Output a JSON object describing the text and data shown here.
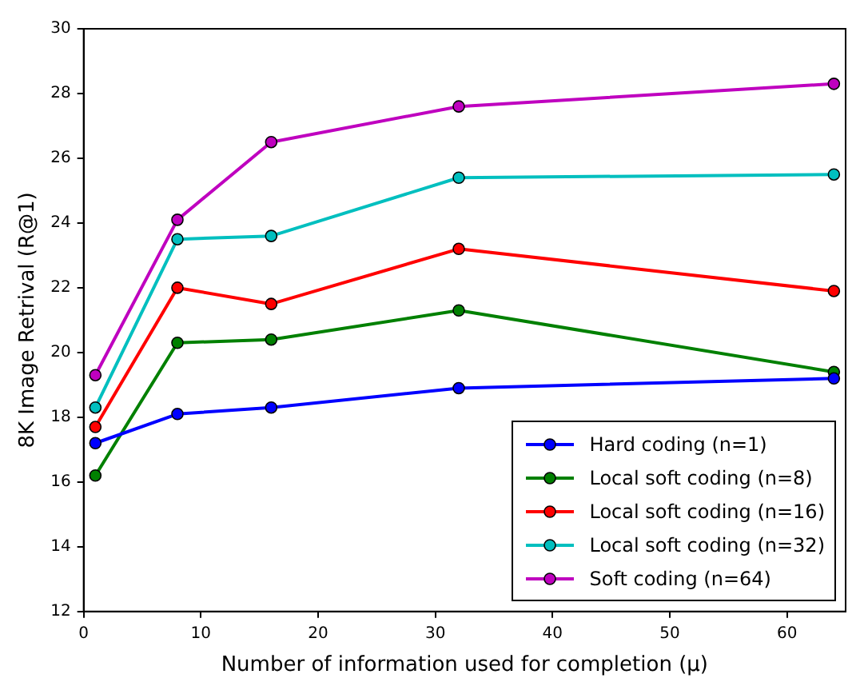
{
  "chart_data": {
    "type": "line",
    "xlabel": "Number of information used for completion (μ)",
    "ylabel": "8K Image Retrival (R@1)",
    "x": [
      1,
      8,
      16,
      32,
      64
    ],
    "xlim": [
      0,
      65
    ],
    "xticks": [
      0,
      10,
      20,
      30,
      40,
      50,
      60
    ],
    "ylim": [
      12,
      30
    ],
    "yticks": [
      12,
      14,
      16,
      18,
      20,
      22,
      24,
      26,
      28,
      30
    ],
    "grid": false,
    "legend": "bottom right",
    "marker": "circle",
    "line_style": "solid",
    "series": [
      {
        "name": "Hard coding (n=1)",
        "color": "#0000ff",
        "values": [
          17.2,
          18.1,
          18.3,
          18.9,
          19.2
        ]
      },
      {
        "name": "Local soft coding (n=8)",
        "color": "#008000",
        "values": [
          16.2,
          20.3,
          20.4,
          21.3,
          19.4
        ]
      },
      {
        "name": "Local soft coding (n=16)",
        "color": "#ff0000",
        "values": [
          17.7,
          22.0,
          21.5,
          23.2,
          21.9
        ]
      },
      {
        "name": "Local soft coding (n=32)",
        "color": "#00bfbf",
        "values": [
          18.3,
          23.5,
          23.6,
          25.4,
          25.5
        ]
      },
      {
        "name": "Soft coding (n=64)",
        "color": "#bf00bf",
        "values": [
          19.3,
          24.1,
          26.5,
          27.6,
          28.3
        ]
      }
    ]
  }
}
